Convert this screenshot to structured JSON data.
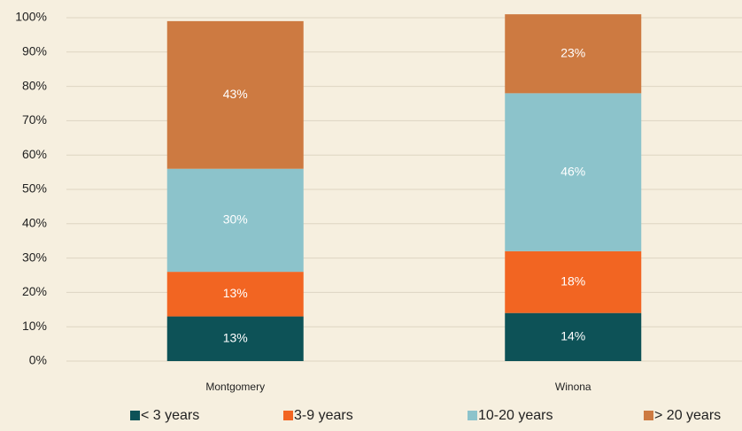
{
  "chart_data": {
    "type": "stacked_bar",
    "categories": [
      "Montgomery",
      "Winona"
    ],
    "series": [
      {
        "name": "< 3 years",
        "color": "#0d5257",
        "values": [
          13,
          14
        ],
        "value_labels": [
          "13%",
          "14%"
        ]
      },
      {
        "name": "3-9 years",
        "color": "#f26522",
        "values": [
          13,
          18
        ],
        "value_labels": [
          "13%",
          "18%"
        ]
      },
      {
        "name": "10-20 years",
        "color": "#8cc3cb",
        "values": [
          30,
          46
        ],
        "value_labels": [
          "30%",
          "46%"
        ]
      },
      {
        "name": "> 20 years",
        "color": "#cd7a41",
        "values": [
          43,
          23
        ],
        "value_labels": [
          "43%",
          "23%"
        ]
      }
    ],
    "ylim": [
      0,
      100
    ],
    "yticks": [
      {
        "value": 0,
        "label": "0%"
      },
      {
        "value": 10,
        "label": "10%"
      },
      {
        "value": 20,
        "label": "20%"
      },
      {
        "value": 30,
        "label": "30%"
      },
      {
        "value": 40,
        "label": "40%"
      },
      {
        "value": 50,
        "label": "50%"
      },
      {
        "value": 60,
        "label": "60%"
      },
      {
        "value": 70,
        "label": "70%"
      },
      {
        "value": 80,
        "label": "80%"
      },
      {
        "value": 90,
        "label": "90%"
      },
      {
        "value": 100,
        "label": "100%"
      }
    ],
    "grid": true,
    "legend": "bottom"
  }
}
